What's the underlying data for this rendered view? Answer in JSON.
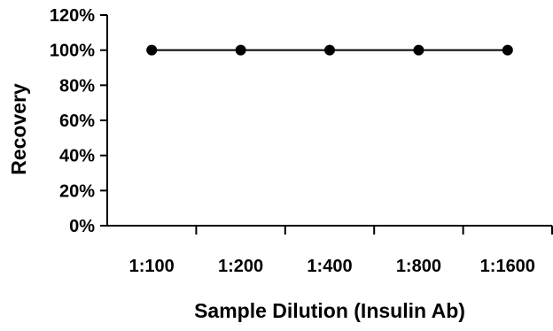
{
  "chart_data": {
    "type": "line",
    "title": "",
    "xlabel": "Sample Dilution (Insulin Ab)",
    "ylabel": "Recovery",
    "categories": [
      "1:100",
      "1:200",
      "1:400",
      "1:800",
      "1:1600"
    ],
    "series": [
      {
        "values": [
          1.0,
          1.0,
          1.0,
          1.0,
          1.0
        ]
      }
    ],
    "ylim": [
      0,
      1.2
    ],
    "yticks": [
      0,
      0.2,
      0.4,
      0.6,
      0.8,
      1.0,
      1.2
    ],
    "ytick_labels": [
      "0%",
      "20%",
      "40%",
      "60%",
      "80%",
      "100%",
      "120%"
    ],
    "grid": false,
    "legend": "none",
    "colors": {
      "line": "#000000",
      "marker": "#000000",
      "axis": "#000000"
    }
  }
}
